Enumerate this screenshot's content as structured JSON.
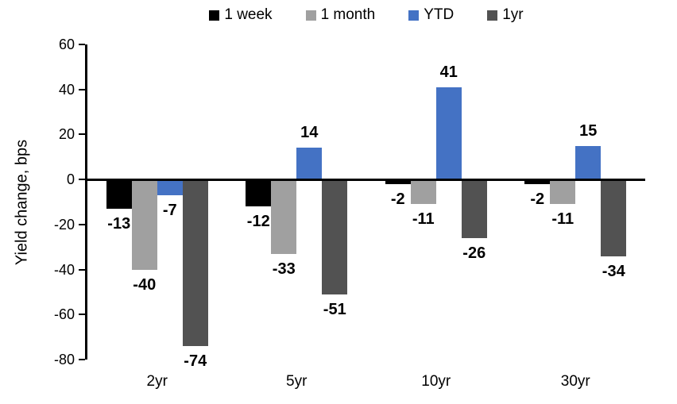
{
  "chart_data": {
    "type": "bar",
    "title": "",
    "ylabel": "Yield change, bps",
    "xlabel": "",
    "categories": [
      "2yr",
      "5yr",
      "10yr",
      "30yr"
    ],
    "series": [
      {
        "name": "1 week",
        "color": "#000000",
        "values": [
          -13,
          -12,
          -2,
          -2
        ]
      },
      {
        "name": "1 month",
        "color": "#A0A0A0",
        "values": [
          -40,
          -33,
          -11,
          -11
        ]
      },
      {
        "name": "YTD",
        "color": "#4472C4",
        "values": [
          -7,
          14,
          41,
          15
        ]
      },
      {
        "name": "1yr",
        "color": "#525252",
        "values": [
          -74,
          -51,
          -26,
          -34
        ]
      }
    ],
    "ylim": [
      -80,
      60
    ],
    "ytick_step": 20,
    "grid": false,
    "legend_position": "top",
    "data_labels": true,
    "axis_color": "#000000",
    "background_color": "#FFFFFF"
  }
}
